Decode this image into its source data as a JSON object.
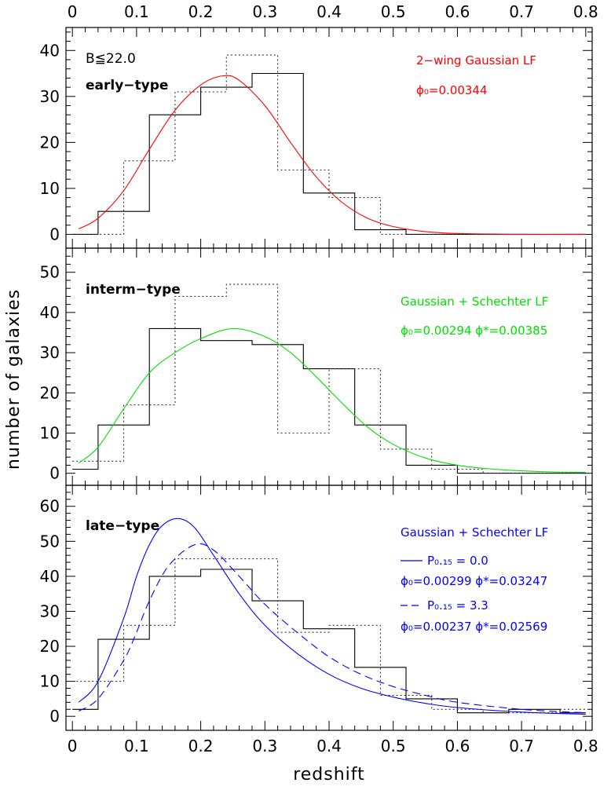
{
  "chart_data": {
    "type": "multi-panel histogram with model curves",
    "xlabel": "redshift",
    "ylabel": "number of galaxies",
    "xlim": [
      -0.01,
      0.81
    ],
    "x_ticks": [
      "0",
      "0.1",
      "0.2",
      "0.3",
      "0.4",
      "0.5",
      "0.6",
      "0.7",
      "0.8"
    ],
    "bin_edges": [
      0.0,
      0.04,
      0.08,
      0.12,
      0.16,
      0.2,
      0.24,
      0.28,
      0.32,
      0.36,
      0.4,
      0.44,
      0.48,
      0.52,
      0.56,
      0.6,
      0.64,
      0.68,
      0.72,
      0.76,
      0.8
    ],
    "panels": [
      {
        "name": "early",
        "label": "early−type",
        "magnitude_cut": "B≦22.0",
        "ylim": [
          -3,
          45
        ],
        "y_ticks": [
          "0",
          "10",
          "20",
          "30",
          "40"
        ],
        "y_tick_values": [
          0,
          10,
          20,
          30,
          40
        ],
        "model_color": "#ff0000",
        "annotations": [
          "2−wing Gaussian LF",
          "ϕ₀=0.00344"
        ],
        "series": [
          {
            "name": "solid histogram",
            "values": [
              0,
              5,
              5,
              26,
              26,
              32,
              32,
              35,
              35,
              9,
              9,
              1,
              1,
              0,
              0,
              0,
              0,
              0,
              0,
              0
            ]
          },
          {
            "name": "dotted histogram",
            "values": [
              0,
              0,
              16,
              16,
              31,
              31,
              39,
              39,
              14,
              14,
              8,
              8,
              0,
              0,
              0,
              0,
              0,
              0,
              0,
              0
            ]
          },
          {
            "name": "2-wing Gaussian LF",
            "x": [
              0.01,
              0.04,
              0.08,
              0.12,
              0.16,
              0.2,
              0.235,
              0.26,
              0.3,
              0.34,
              0.38,
              0.42,
              0.46,
              0.5,
              0.55,
              0.6,
              0.7,
              0.8
            ],
            "y": [
              1.2,
              3.5,
              9.5,
              18.5,
              27,
              32.5,
              34.5,
              33.5,
              28,
              20,
              12.5,
              7,
              3.5,
              1.7,
              0.6,
              0.2,
              0.0,
              0.0
            ]
          }
        ]
      },
      {
        "name": "interm",
        "label": "interm−type",
        "ylim": [
          -3,
          56
        ],
        "y_ticks": [
          "0",
          "10",
          "20",
          "30",
          "40",
          "50"
        ],
        "y_tick_values": [
          0,
          10,
          20,
          30,
          40,
          50
        ],
        "model_color": "#00e000",
        "annotations": [
          "Gaussian + Schechter LF",
          "ϕ₀=0.00294   ϕ*=0.00385"
        ],
        "series": [
          {
            "name": "solid histogram",
            "values": [
              1,
              12,
              12,
              36,
              36,
              33,
              33,
              32,
              32,
              26,
              26,
              12,
              12,
              2,
              2,
              0,
              0,
              0,
              0,
              0
            ]
          },
          {
            "name": "dotted histogram",
            "values": [
              3,
              3,
              17,
              17,
              44,
              44,
              47,
              47,
              10,
              10,
              26,
              26,
              6,
              6,
              1,
              1,
              0,
              0,
              0,
              0
            ]
          },
          {
            "name": "Gaussian + Schechter LF",
            "x": [
              0.01,
              0.04,
              0.08,
              0.12,
              0.16,
              0.2,
              0.25,
              0.3,
              0.34,
              0.38,
              0.42,
              0.46,
              0.5,
              0.55,
              0.6,
              0.65,
              0.7,
              0.75,
              0.8
            ],
            "y": [
              2.5,
              6.5,
              16,
              25,
              30,
              33.5,
              36,
              34,
              30,
              24,
              17.5,
              11.5,
              7.2,
              3.8,
              2.0,
              1.1,
              0.6,
              0.3,
              0.2
            ]
          }
        ]
      },
      {
        "name": "late",
        "label": "late−type",
        "ylim": [
          -4,
          66
        ],
        "y_ticks": [
          "0",
          "10",
          "20",
          "30",
          "40",
          "50",
          "60"
        ],
        "y_tick_values": [
          0,
          10,
          20,
          30,
          40,
          50,
          60
        ],
        "model_color": "#0000ff",
        "annotations": [
          "Gaussian + Schechter LF",
          "P₀.₁₅ = 0.0",
          "ϕ₀=0.00299   ϕ*=0.03247",
          "P₀.₁₅ = 3.3",
          "ϕ₀=0.00237   ϕ*=0.02569"
        ],
        "series": [
          {
            "name": "solid histogram",
            "values": [
              2,
              22,
              22,
              40,
              40,
              42,
              42,
              33,
              33,
              25,
              25,
              14,
              14,
              5,
              5,
              1,
              1,
              2,
              2,
              1
            ]
          },
          {
            "name": "dotted histogram",
            "values": [
              10,
              10,
              26,
              26,
              45,
              45,
              45,
              45,
              24,
              24,
              26,
              26,
              6,
              6,
              2,
              2,
              1,
              1,
              1,
              2
            ]
          },
          {
            "name": "model P=0.0 (solid)",
            "x": [
              0.01,
              0.04,
              0.08,
              0.1,
              0.12,
              0.14,
              0.165,
              0.19,
              0.22,
              0.26,
              0.3,
              0.35,
              0.4,
              0.45,
              0.5,
              0.55,
              0.6,
              0.7,
              0.8
            ],
            "y": [
              4,
              10,
              28,
              40,
              49,
              54.5,
              56.5,
              54,
              46,
              35,
              26,
              18,
              12,
              8,
              5.5,
              3.7,
              2.5,
              1.2,
              0.6
            ]
          },
          {
            "name": "model P=3.3 (dashed)",
            "x": [
              0.01,
              0.04,
              0.08,
              0.1,
              0.12,
              0.15,
              0.19,
              0.22,
              0.26,
              0.3,
              0.35,
              0.4,
              0.45,
              0.5,
              0.55,
              0.6,
              0.7,
              0.8
            ],
            "y": [
              1.5,
              5,
              16,
              24,
              33,
              43,
              49,
              47.5,
              40,
              32,
              24,
              17,
              12,
              8.5,
              6,
              4,
              2,
              1
            ]
          }
        ]
      }
    ]
  }
}
